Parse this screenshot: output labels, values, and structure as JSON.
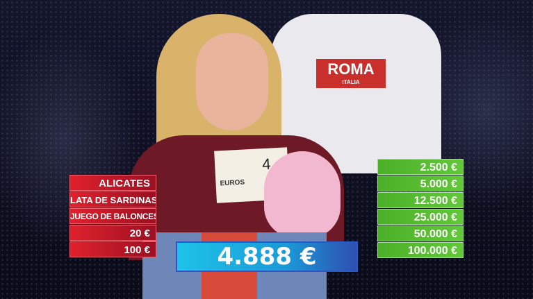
{
  "scene": {
    "shirt_print": "ROMA",
    "shirt_print_sub": "ITALIA",
    "cheque_label": "EUROS",
    "cheque_handwritten": "4"
  },
  "left_board": {
    "color": "#d4192a",
    "items": [
      "ALICATES",
      "LATA DE SARDINAS",
      "JUEGO DE BALONCESTO",
      "20 €",
      "100 €"
    ]
  },
  "right_board": {
    "color": "#55b830",
    "items": [
      "2.500 €",
      "5.000 €",
      "12.500 €",
      "25.000 €",
      "50.000 €",
      "100.000 €"
    ]
  },
  "offer": {
    "value": "4.888 €",
    "color": "#1ab0e0"
  }
}
